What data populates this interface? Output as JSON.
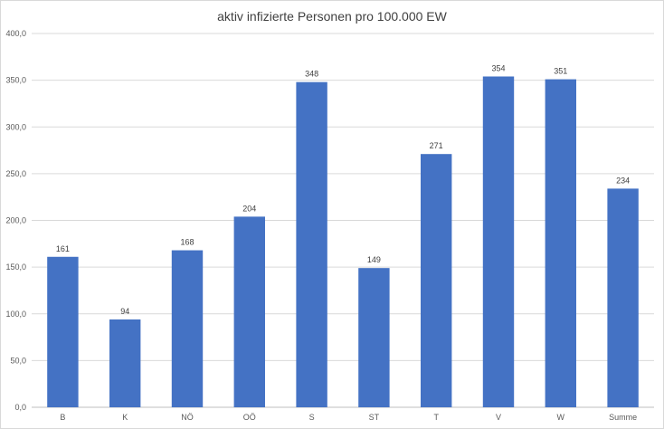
{
  "chart_data": {
    "type": "bar",
    "title": "aktiv infizierte Personen pro 100.000 EW",
    "categories": [
      "B",
      "K",
      "NÖ",
      "OÖ",
      "S",
      "ST",
      "T",
      "V",
      "W",
      "Summe"
    ],
    "values": [
      161,
      94,
      168,
      204,
      348,
      149,
      271,
      354,
      351,
      234
    ],
    "data_labels": [
      "161",
      "94",
      "168",
      "204",
      "348",
      "149",
      "271",
      "354",
      "351",
      "234"
    ],
    "y_ticks": [
      "0,0",
      "50,0",
      "100,0",
      "150,0",
      "200,0",
      "250,0",
      "300,0",
      "350,0",
      "400,0"
    ],
    "ylim": [
      0,
      400
    ],
    "grid": true,
    "legend": "none",
    "bar_color": "#4472c4",
    "xlabel": "",
    "ylabel": ""
  }
}
